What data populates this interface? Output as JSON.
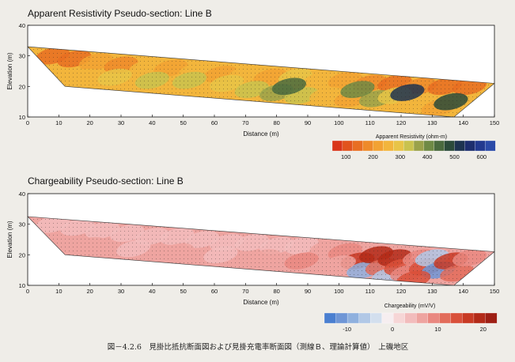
{
  "chart_data": [
    {
      "type": "heatmap",
      "title": "Apparent Resistivity Pseudo-section: Line B",
      "xlabel": "Distance (m)",
      "ylabel": "Elevation (m)",
      "xlim": [
        0,
        150
      ],
      "ylim": [
        10,
        40
      ],
      "xticks": [
        0,
        10,
        20,
        30,
        40,
        50,
        60,
        70,
        80,
        90,
        100,
        110,
        120,
        130,
        140,
        150
      ],
      "yticks": [
        10,
        20,
        30,
        40
      ],
      "surface": [
        [
          0,
          33
        ],
        [
          150,
          21
        ]
      ],
      "section_outline": [
        [
          0,
          33
        ],
        [
          150,
          21
        ],
        [
          137,
          10
        ],
        [
          12,
          20
        ]
      ],
      "colorbar": {
        "title": "Apparent Resistivity (ohm-m)",
        "tick_labels": [
          "100",
          "200",
          "300",
          "400",
          "500",
          "600"
        ],
        "tick_values": [
          100,
          200,
          300,
          400,
          500,
          600
        ],
        "range": [
          50,
          650
        ],
        "colors": [
          "#d9361a",
          "#e1531d",
          "#e86e22",
          "#ee8a2a",
          "#f2a233",
          "#f2b53c",
          "#e8c447",
          "#c9c24e",
          "#9aa24a",
          "#6f8a45",
          "#4a6a3e",
          "#2b4a3a",
          "#1d3350",
          "#1d2e6e",
          "#22398f",
          "#2b4aa8"
        ]
      },
      "cells": [
        {
          "x": 8,
          "y": 30,
          "v": 130
        },
        {
          "x": 15,
          "y": 29,
          "v": 160
        },
        {
          "x": 22,
          "y": 28,
          "v": 210
        },
        {
          "x": 30,
          "y": 27,
          "v": 180
        },
        {
          "x": 38,
          "y": 26,
          "v": 240
        },
        {
          "x": 46,
          "y": 26,
          "v": 200
        },
        {
          "x": 54,
          "y": 25,
          "v": 260
        },
        {
          "x": 62,
          "y": 24,
          "v": 230
        },
        {
          "x": 70,
          "y": 24,
          "v": 250
        },
        {
          "x": 78,
          "y": 23,
          "v": 220
        },
        {
          "x": 86,
          "y": 23,
          "v": 280
        },
        {
          "x": 94,
          "y": 22,
          "v": 240
        },
        {
          "x": 102,
          "y": 22,
          "v": 200
        },
        {
          "x": 110,
          "y": 21,
          "v": 180
        },
        {
          "x": 118,
          "y": 21,
          "v": 150
        },
        {
          "x": 126,
          "y": 20,
          "v": 190
        },
        {
          "x": 134,
          "y": 20,
          "v": 160
        },
        {
          "x": 142,
          "y": 20,
          "v": 140
        },
        {
          "x": 18,
          "y": 23,
          "v": 260
        },
        {
          "x": 28,
          "y": 23,
          "v": 300
        },
        {
          "x": 40,
          "y": 22,
          "v": 320
        },
        {
          "x": 52,
          "y": 22,
          "v": 340
        },
        {
          "x": 64,
          "y": 21,
          "v": 300
        },
        {
          "x": 72,
          "y": 19,
          "v": 330
        },
        {
          "x": 80,
          "y": 18,
          "v": 380
        },
        {
          "x": 88,
          "y": 17,
          "v": 320
        },
        {
          "x": 96,
          "y": 17,
          "v": 260
        },
        {
          "x": 104,
          "y": 16,
          "v": 230
        },
        {
          "x": 112,
          "y": 16,
          "v": 360
        },
        {
          "x": 118,
          "y": 17,
          "v": 310
        },
        {
          "x": 124,
          "y": 15,
          "v": 240
        },
        {
          "x": 132,
          "y": 13,
          "v": 210
        },
        {
          "x": 136,
          "y": 15,
          "v": 470
        },
        {
          "x": 106,
          "y": 19,
          "v": 420
        },
        {
          "x": 84,
          "y": 20,
          "v": 450
        },
        {
          "x": 122,
          "y": 18,
          "v": 500
        }
      ]
    },
    {
      "type": "heatmap",
      "title": "Chargeability Pseudo-section: Line B",
      "xlabel": "Distance (m)",
      "ylabel": "Elevation (m)",
      "xlim": [
        0,
        150
      ],
      "ylim": [
        10,
        40
      ],
      "xticks": [
        0,
        10,
        20,
        30,
        40,
        50,
        60,
        70,
        80,
        90,
        100,
        110,
        120,
        130,
        140,
        150
      ],
      "yticks": [
        10,
        20,
        30,
        40
      ],
      "surface": [
        [
          0,
          32.5
        ],
        [
          150,
          21
        ]
      ],
      "section_outline": [
        [
          0,
          32.5
        ],
        [
          150,
          21
        ],
        [
          137,
          10
        ],
        [
          12,
          20
        ]
      ],
      "colorbar": {
        "title": "Chargeability (mV/V)",
        "tick_labels": [
          "-10",
          "0",
          "10",
          "20"
        ],
        "tick_values": [
          -10,
          0,
          10,
          20
        ],
        "range": [
          -15,
          23
        ],
        "colors": [
          "#4a7fd0",
          "#6f96d6",
          "#8fb0de",
          "#b1c8e6",
          "#d3dfee",
          "#f6eef0",
          "#f6d6d6",
          "#f2bcbc",
          "#eea4a0",
          "#e98880",
          "#e26c5a",
          "#d9503a",
          "#c83a24",
          "#b32a18",
          "#9e1f14"
        ]
      },
      "cells": [
        {
          "x": 8,
          "y": 30,
          "v": 4
        },
        {
          "x": 16,
          "y": 29,
          "v": 5
        },
        {
          "x": 24,
          "y": 28,
          "v": 3
        },
        {
          "x": 32,
          "y": 27,
          "v": 4
        },
        {
          "x": 40,
          "y": 26,
          "v": 5
        },
        {
          "x": 48,
          "y": 26,
          "v": 3
        },
        {
          "x": 56,
          "y": 25,
          "v": 4
        },
        {
          "x": 64,
          "y": 24,
          "v": 5
        },
        {
          "x": 72,
          "y": 24,
          "v": 4
        },
        {
          "x": 80,
          "y": 23,
          "v": 3
        },
        {
          "x": 88,
          "y": 23,
          "v": 5
        },
        {
          "x": 96,
          "y": 22,
          "v": 6
        },
        {
          "x": 20,
          "y": 23,
          "v": 6
        },
        {
          "x": 34,
          "y": 22,
          "v": 4
        },
        {
          "x": 48,
          "y": 21,
          "v": 7
        },
        {
          "x": 62,
          "y": 20,
          "v": 5
        },
        {
          "x": 76,
          "y": 19,
          "v": 6
        },
        {
          "x": 88,
          "y": 18,
          "v": 8
        },
        {
          "x": 102,
          "y": 21,
          "v": 10
        },
        {
          "x": 106,
          "y": 18,
          "v": 16
        },
        {
          "x": 108,
          "y": 15,
          "v": -8
        },
        {
          "x": 112,
          "y": 20,
          "v": 18
        },
        {
          "x": 114,
          "y": 16,
          "v": 12
        },
        {
          "x": 116,
          "y": 13,
          "v": -5
        },
        {
          "x": 118,
          "y": 19,
          "v": 20
        },
        {
          "x": 120,
          "y": 16,
          "v": 15
        },
        {
          "x": 122,
          "y": 14,
          "v": 8
        },
        {
          "x": 126,
          "y": 19,
          "v": 10
        },
        {
          "x": 128,
          "y": 16,
          "v": 14
        },
        {
          "x": 130,
          "y": 19,
          "v": -6
        },
        {
          "x": 132,
          "y": 15,
          "v": -10
        },
        {
          "x": 136,
          "y": 18,
          "v": 17
        },
        {
          "x": 138,
          "y": 14,
          "v": 12
        },
        {
          "x": 142,
          "y": 19,
          "v": 9
        },
        {
          "x": 100,
          "y": 17,
          "v": 7
        },
        {
          "x": 124,
          "y": 12,
          "v": 13
        }
      ]
    }
  ],
  "caption": "図－4.2.6　見掛比抵抗断面図および見掛充電率断面図（測線Ｂ、理論計算値）　上磯地区"
}
